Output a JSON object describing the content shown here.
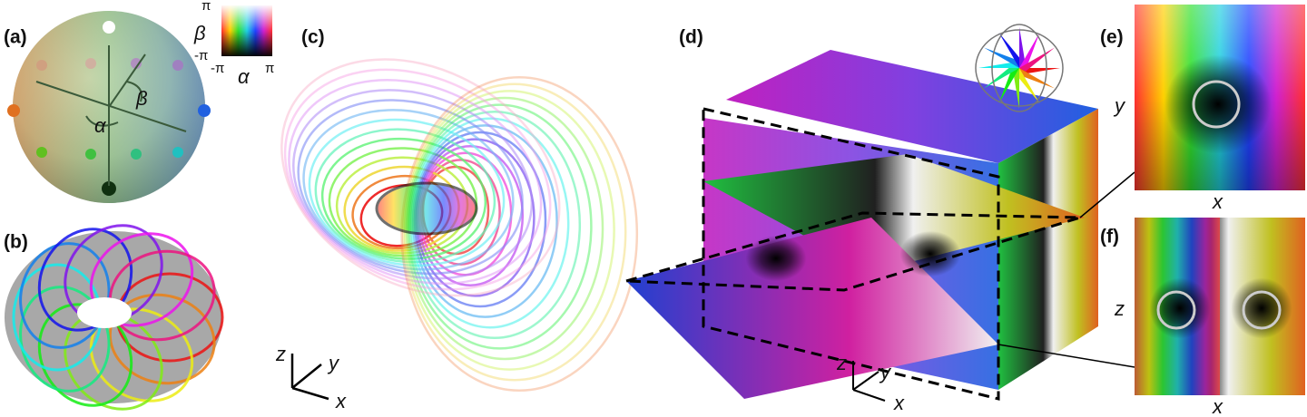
{
  "panels": {
    "a": {
      "label": "(a)",
      "angle_labels": [
        "α",
        "β"
      ]
    },
    "colorbar": {
      "y_label": "β",
      "x_label": "α",
      "y_ticks": [
        "π",
        "-π"
      ],
      "x_ticks": [
        "-π",
        "π"
      ]
    },
    "b": {
      "label": "(b)"
    },
    "c": {
      "label": "(c)",
      "axes": [
        "z",
        "y",
        "x"
      ]
    },
    "d": {
      "label": "(d)",
      "axes": [
        "z",
        "y",
        "x"
      ]
    },
    "e": {
      "label": "(e)",
      "y_label": "y",
      "x_label": "x"
    },
    "f": {
      "label": "(f)",
      "y_label": "z",
      "x_label": "x"
    }
  }
}
